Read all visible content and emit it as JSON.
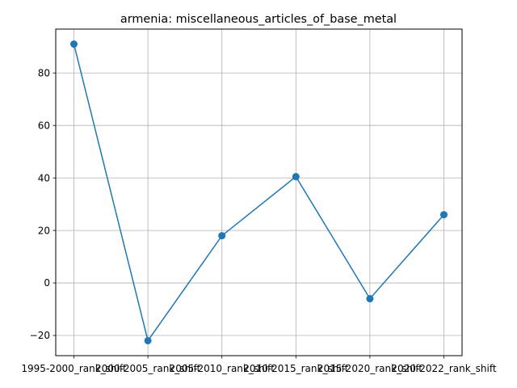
{
  "chart_data": {
    "type": "line",
    "title": "armenia: miscellaneous_articles_of_base_metal",
    "xlabel": "",
    "ylabel": "",
    "categories": [
      "1995-2000_rank_shift",
      "2000-2005_rank_shift",
      "2005-2010_rank_shift",
      "2010-2015_rank_shift",
      "2015-2020_rank_shift",
      "2020-2022_rank_shift"
    ],
    "series": [
      {
        "values": [
          91,
          -22,
          18,
          40.5,
          -6,
          26
        ],
        "color": "#1f77b4"
      }
    ],
    "ylim": [
      -27.7,
      96.7
    ],
    "yticks": [
      -20,
      0,
      20,
      40,
      60,
      80
    ],
    "grid": true,
    "legend": "none"
  }
}
